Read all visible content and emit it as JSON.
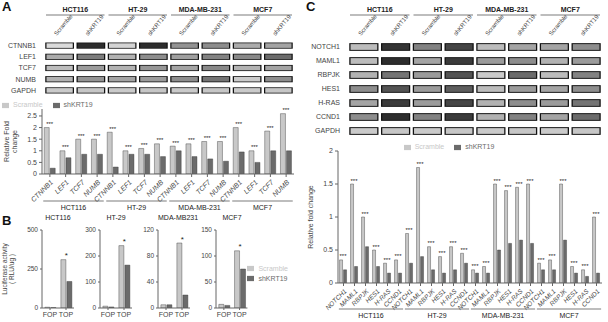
{
  "chart_data": [
    {
      "type": "heatmap",
      "title": "A",
      "groups": [
        "HCT116",
        "HT-29",
        "MDA-MB-231",
        "MCF7"
      ],
      "lanes": [
        "Scramble",
        "shKRT19"
      ],
      "rows": [
        "CTNNB1",
        "LEF1",
        "TCF7",
        "NUMB",
        "GAPDH"
      ],
      "cells": [
        [
          0.85,
          0.12,
          0.82,
          0.12,
          0.55,
          0.52,
          0.65,
          0.62
        ],
        [
          0.65,
          0.45,
          0.68,
          0.52,
          0.6,
          0.48,
          0.5,
          0.38
        ],
        [
          0.72,
          0.58,
          0.68,
          0.56,
          0.62,
          0.5,
          0.68,
          0.62
        ],
        [
          0.68,
          0.55,
          0.62,
          0.58,
          0.52,
          0.42,
          0.78,
          0.52
        ],
        [
          0.78,
          0.76,
          0.78,
          0.76,
          0.78,
          0.76,
          0.78,
          0.76
        ]
      ],
      "color": "#111111"
    },
    {
      "type": "bar",
      "ylabel": "Relative Fold\nchange",
      "groups": [
        "HCT116",
        "HT-29",
        "MDA-MB-231",
        "MCF7"
      ],
      "categories": [
        "CTNNB1",
        "LEF1",
        "TCF7",
        "NUMB",
        "CTNNB1",
        "LEF1",
        "TCF7",
        "NUMB",
        "CTNNB1",
        "LEF1",
        "TCF7",
        "NUMB",
        "CTNNB1",
        "LEF1",
        "TCF7",
        "NUMB"
      ],
      "series": [
        {
          "name": "Scramble",
          "color": "#c8c8c8",
          "values": [
            2.0,
            1.0,
            1.5,
            1.5,
            1.8,
            1.0,
            1.1,
            1.3,
            1.2,
            1.3,
            1.4,
            1.4,
            2.0,
            1.0,
            1.85,
            2.6
          ]
        },
        {
          "name": "shKRT19",
          "color": "#6b6b6b",
          "values": [
            0.25,
            0.7,
            0.85,
            0.85,
            0.3,
            0.85,
            0.85,
            0.75,
            1.0,
            0.75,
            0.65,
            0.55,
            0.95,
            0.5,
            1.0,
            1.0
          ]
        }
      ],
      "annotations": [
        "***",
        "***",
        "***",
        "***",
        "***",
        "***",
        "***",
        "***",
        "***",
        "***",
        "***",
        "***",
        "***",
        "***",
        "***",
        "***"
      ],
      "ylim": [
        0,
        2.8
      ],
      "yticks": [
        0,
        0.5,
        1,
        1.5,
        2,
        2.5
      ],
      "legend": "upper left",
      "grid": false
    },
    {
      "type": "bar",
      "title": "B",
      "ylabel": "Luciferase activity\n( RLU/ug )",
      "legend": "right",
      "grid": false,
      "panels": [
        {
          "title": "HCT116",
          "categories": [
            "FOP",
            "TOP"
          ],
          "series": [
            {
              "name": "Scramble",
              "color": "#c8c8c8",
              "values": [
                5,
                310
              ]
            },
            {
              "name": "shKRT19",
              "color": "#6b6b6b",
              "values": [
                3,
                170
              ]
            }
          ],
          "annotations": [
            null,
            "*"
          ],
          "ylim": [
            0,
            500
          ],
          "yticks": [
            0,
            250,
            500
          ]
        },
        {
          "title": "HT-29",
          "categories": [
            "FOP",
            "TOP"
          ],
          "series": [
            {
              "name": "Scramble",
              "color": "#c8c8c8",
              "values": [
                7,
                240
              ]
            },
            {
              "name": "shKRT19",
              "color": "#6b6b6b",
              "values": [
                4,
                165
              ]
            }
          ],
          "annotations": [
            null,
            "*"
          ],
          "ylim": [
            0,
            300
          ],
          "yticks": [
            0,
            100,
            200,
            300
          ]
        },
        {
          "title": "MDA-MB231",
          "categories": [
            "FOP",
            "TOP"
          ],
          "series": [
            {
              "name": "Scramble",
              "color": "#c8c8c8",
              "values": [
                5,
                100
              ]
            },
            {
              "name": "shKRT19",
              "color": "#6b6b6b",
              "values": [
                5,
                20
              ]
            }
          ],
          "annotations": [
            null,
            "*"
          ],
          "ylim": [
            0,
            120
          ],
          "yticks": [
            0,
            40,
            80,
            120
          ]
        },
        {
          "title": "MCF7",
          "categories": [
            "FOP",
            "TOP"
          ],
          "series": [
            {
              "name": "Scramble",
              "color": "#c8c8c8",
              "values": [
                7,
                110
              ]
            },
            {
              "name": "shKRT19",
              "color": "#6b6b6b",
              "values": [
                5,
                75
              ]
            }
          ],
          "annotations": [
            null,
            "*"
          ],
          "ylim": [
            0,
            150
          ],
          "yticks": [
            0,
            50,
            100,
            150
          ]
        }
      ]
    },
    {
      "type": "heatmap",
      "title": "C",
      "groups": [
        "HCT116",
        "HT-29",
        "MDA-MB-231",
        "MCF7"
      ],
      "lanes": [
        "Scramble",
        "shKRT19"
      ],
      "rows": [
        "NOTCH1",
        "MAML1",
        "RBPJK",
        "HES1",
        "H-RAS",
        "CCND1",
        "GAPDH"
      ],
      "cells": [
        [
          0.72,
          0.15,
          0.48,
          0.22,
          0.72,
          0.62,
          0.62,
          0.52
        ],
        [
          0.72,
          0.12,
          0.62,
          0.18,
          0.58,
          0.52,
          0.68,
          0.58
        ],
        [
          0.68,
          0.42,
          0.58,
          0.28,
          0.78,
          0.38,
          0.72,
          0.48
        ],
        [
          0.52,
          0.28,
          0.58,
          0.32,
          0.72,
          0.58,
          0.62,
          0.52
        ],
        [
          0.62,
          0.18,
          0.58,
          0.22,
          0.68,
          0.52,
          0.58,
          0.42
        ],
        [
          0.52,
          0.12,
          0.48,
          0.18,
          0.68,
          0.48,
          0.62,
          0.38
        ],
        [
          0.78,
          0.76,
          0.78,
          0.76,
          0.78,
          0.76,
          0.78,
          0.76
        ]
      ],
      "color": "#111111"
    },
    {
      "type": "bar",
      "ylabel": "Relative fold change",
      "groups": [
        "HCT116",
        "HT-29",
        "MDA-MB-231",
        "MCF7"
      ],
      "categories": [
        "NOTCH1",
        "MAML1",
        "RBPJK",
        "HES1",
        "H-RAS",
        "CCND1",
        "NOTCH1",
        "MAML1",
        "RBPJK",
        "HES1",
        "H-RAS",
        "CCND1",
        "NOTCH1",
        "MAML1",
        "RBPJK",
        "HES1",
        "H-RAS",
        "CCND1",
        "NOTCH1",
        "MAML1",
        "RBPJK",
        "HES1",
        "H-RAS",
        "CCND1"
      ],
      "series": [
        {
          "name": "Scramble",
          "color": "#c8c8c8",
          "values": [
            0.35,
            1.5,
            1.0,
            0.5,
            0.3,
            0.35,
            0.75,
            1.75,
            0.55,
            0.4,
            0.55,
            0.45,
            0.2,
            0.25,
            1.5,
            1.4,
            1.45,
            1.5,
            0.3,
            0.35,
            1.5,
            0.25,
            0.2,
            1.0
          ]
        },
        {
          "name": "shKRT19",
          "color": "#6b6b6b",
          "values": [
            0.2,
            0.25,
            0.55,
            0.25,
            0.15,
            0.15,
            0.3,
            0.4,
            0.2,
            0.15,
            0.2,
            0.3,
            0.15,
            0.15,
            0.5,
            0.6,
            0.65,
            0.6,
            0.2,
            0.2,
            0.65,
            0.15,
            0.1,
            0.15
          ]
        }
      ],
      "annotations": [
        "***",
        "***",
        "***",
        "***",
        "***",
        "***",
        "***",
        "***",
        "***",
        "***",
        "***",
        "***",
        "***",
        "***",
        "***",
        "***",
        "***",
        "***",
        "***",
        "***",
        "***",
        "***",
        "***",
        "***"
      ],
      "ylim": [
        0,
        2.0
      ],
      "yticks": [
        0,
        0.5,
        1,
        1.5,
        2
      ],
      "legend": "upper center",
      "grid": false
    }
  ]
}
